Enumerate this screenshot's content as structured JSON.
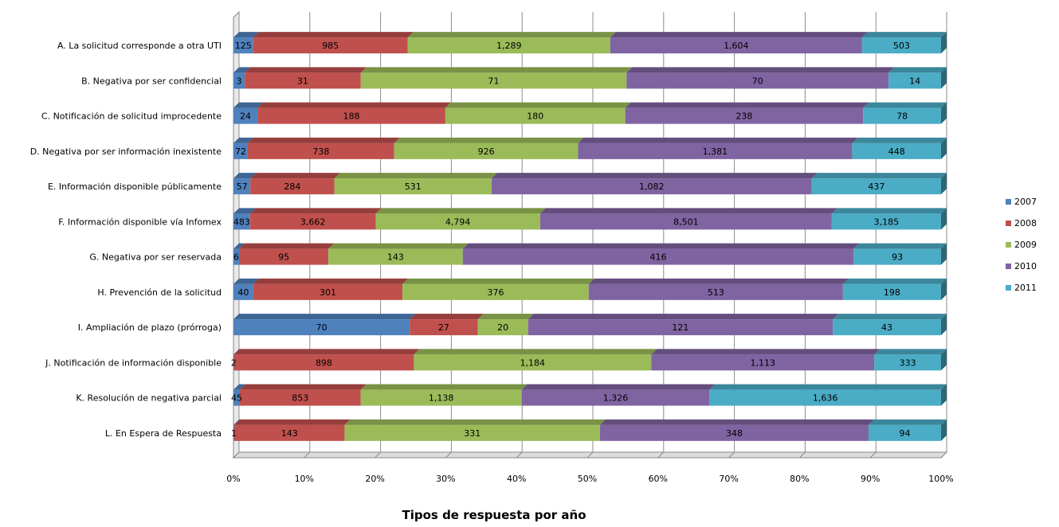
{
  "chart_data": {
    "type": "bar",
    "orientation": "horizontal",
    "stacking": "percent",
    "title": "Tipos de respuesta por año",
    "xlabel": "",
    "ylabel": "",
    "xlim": [
      0,
      100
    ],
    "grid": true,
    "legend_position": "right",
    "x_tick_labels": [
      "0%",
      "10%",
      "20%",
      "30%",
      "40%",
      "50%",
      "60%",
      "70%",
      "80%",
      "90%",
      "100%"
    ],
    "categories": [
      "A. La solicitud corresponde a otra UTI",
      "B. Negativa por ser confidencial",
      "C. Notificación de solicitud improcedente",
      "D. Negativa por ser información inexistente",
      "E. Información disponible públicamente",
      "F. Información disponible vía Infomex",
      "G. Negativa por ser reservada",
      "H. Prevención de la solicitud",
      "I. Ampliación de plazo (prórroga)",
      "J. Notificación de información disponible",
      "K. Resolución de negativa parcial",
      "L. En Espera de Respuesta"
    ],
    "series": [
      {
        "name": "2007",
        "color": "#4F81BD",
        "values": [
          125,
          3,
          24,
          72,
          57,
          483,
          6,
          40,
          70,
          2,
          45,
          1
        ],
        "labels": [
          "125",
          "3",
          "24",
          "72",
          "57",
          "483",
          "6",
          "40",
          "70",
          "2",
          "45",
          "1"
        ]
      },
      {
        "name": "2008",
        "color": "#C0504D",
        "values": [
          985,
          31,
          188,
          738,
          284,
          3662,
          95,
          301,
          27,
          898,
          853,
          143
        ],
        "labels": [
          "985",
          "31",
          "188",
          "738",
          "284",
          "3,662",
          "95",
          "301",
          "27",
          "898",
          "853",
          "143"
        ]
      },
      {
        "name": "2009",
        "color": "#9BBB59",
        "values": [
          1289,
          71,
          180,
          926,
          531,
          4794,
          143,
          376,
          20,
          1184,
          1138,
          331
        ],
        "labels": [
          "1,289",
          "71",
          "180",
          "926",
          "531",
          "4,794",
          "143",
          "376",
          "20",
          "1,184",
          "1,138",
          "331"
        ]
      },
      {
        "name": "2010",
        "color": "#8064A2",
        "values": [
          1604,
          70,
          238,
          1381,
          1082,
          8501,
          416,
          513,
          121,
          1113,
          1326,
          348
        ],
        "labels": [
          "1,604",
          "70",
          "238",
          "1,381",
          "1,082",
          "8,501",
          "416",
          "513",
          "121",
          "1,113",
          "1,326",
          "348"
        ]
      },
      {
        "name": "2011",
        "color": "#4BACC6",
        "values": [
          503,
          14,
          78,
          448,
          437,
          3185,
          93,
          198,
          43,
          333,
          1636,
          94
        ],
        "labels": [
          "503",
          "14",
          "78",
          "448",
          "437",
          "3,185",
          "93",
          "198",
          "43",
          "333",
          "1,636",
          "94"
        ]
      }
    ]
  }
}
